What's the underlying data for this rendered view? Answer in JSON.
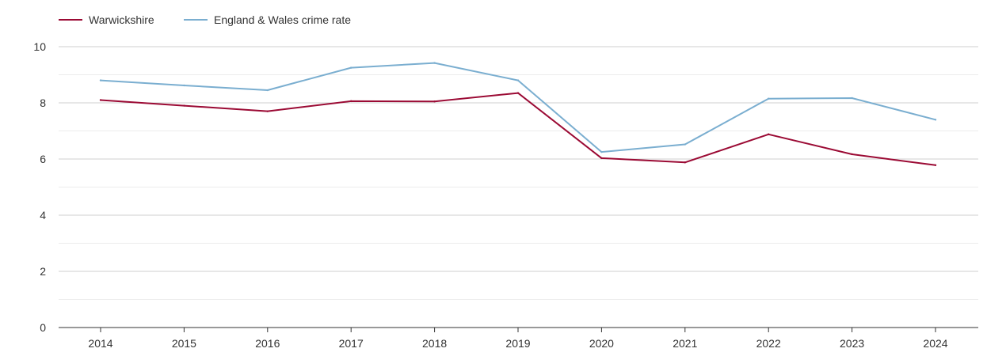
{
  "chart_data": {
    "type": "line",
    "title": "",
    "xlabel": "",
    "ylabel": "",
    "categories": [
      "2014",
      "2015",
      "2016",
      "2017",
      "2018",
      "2019",
      "2020",
      "2021",
      "2022",
      "2023",
      "2024"
    ],
    "ylim": [
      0,
      10
    ],
    "y_ticks": [
      "0",
      "2",
      "4",
      "6",
      "8",
      "10"
    ],
    "grid": true,
    "legend_position": "top-left",
    "series": [
      {
        "name": "Warwickshire",
        "color": "#9b0a34",
        "values": [
          8.1,
          7.9,
          7.7,
          8.06,
          8.05,
          8.35,
          6.03,
          5.88,
          6.88,
          6.17,
          5.78
        ]
      },
      {
        "name": "England & Wales crime rate",
        "color": "#7aaed0",
        "values": [
          8.8,
          8.62,
          8.45,
          9.25,
          9.42,
          8.8,
          6.25,
          6.52,
          8.15,
          8.17,
          7.4
        ]
      }
    ]
  }
}
